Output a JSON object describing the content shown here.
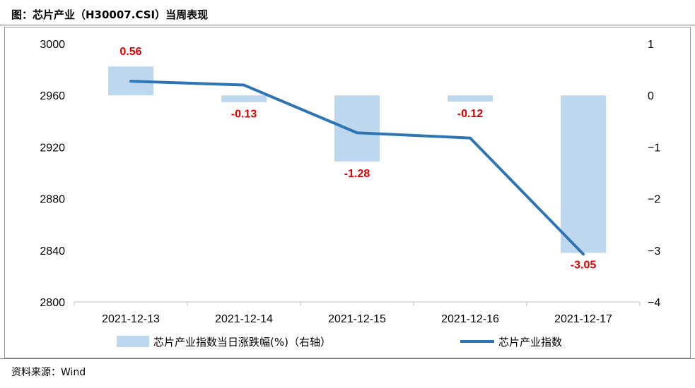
{
  "title": "图：芯片产业（H30007.CSI）当周表现",
  "source": "资料来源：Wind",
  "chart_data": {
    "type": "bar+line",
    "categories": [
      "2021-12-13",
      "2021-12-14",
      "2021-12-15",
      "2021-12-16",
      "2021-12-17"
    ],
    "series": [
      {
        "name": "芯片产业指数当日涨跌幅(%)（右轴）",
        "type": "bar",
        "axis": "right",
        "color": "#bdd7ee",
        "values": [
          0.56,
          -0.13,
          -1.28,
          -0.12,
          -3.05
        ],
        "labels": [
          "0.56",
          "-0.13",
          "-1.28",
          "-0.12",
          "-3.05"
        ]
      },
      {
        "name": "芯片产业指数",
        "type": "line",
        "axis": "left",
        "color": "#2e75b6",
        "values": [
          2971,
          2968,
          2931,
          2927,
          2837
        ]
      }
    ],
    "y_left": {
      "min": 2800,
      "max": 3000,
      "ticks": [
        "3000",
        "2960",
        "2920",
        "2880",
        "2840",
        "2800"
      ]
    },
    "y_right": {
      "min": -4,
      "max": 1,
      "ticks": [
        "1",
        "0",
        "−1",
        "−2",
        "−3",
        "−4"
      ]
    },
    "grid": false,
    "legend_position": "bottom",
    "label_color": "#e00000"
  }
}
